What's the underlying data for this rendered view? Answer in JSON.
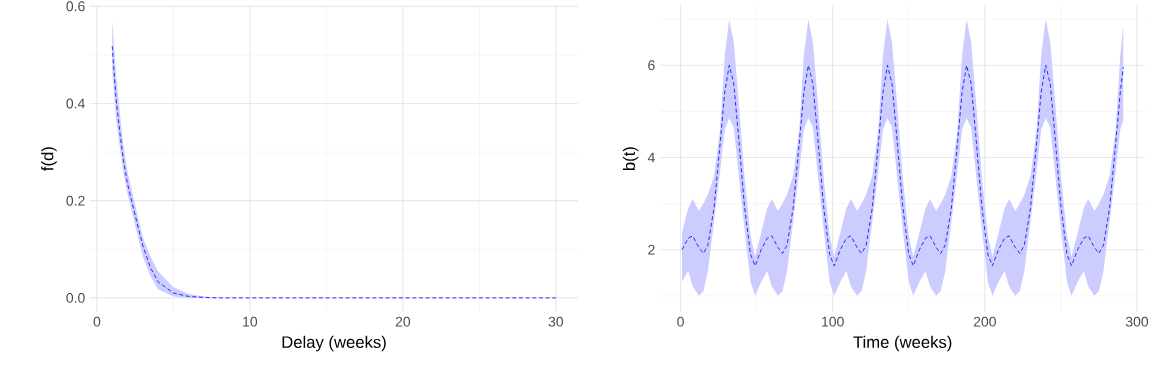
{
  "chart_data": [
    {
      "type": "line",
      "xlabel": "Delay (weeks)",
      "ylabel": "f(d)",
      "xlim": [
        -0.45,
        31.45
      ],
      "ylim": [
        -0.029,
        0.602
      ],
      "xticks": [
        0,
        10,
        20,
        30
      ],
      "yticks": [
        {
          "value": 0,
          "label": "0.0"
        },
        {
          "value": 0.2,
          "label": "0.2"
        },
        {
          "value": 0.4,
          "label": "0.4"
        },
        {
          "value": 0.6,
          "label": "0.6"
        }
      ],
      "grid": true,
      "series": [
        {
          "color": "#0000ff",
          "line_style": "dashed",
          "x": [
            1,
            1.25,
            1.5,
            1.75,
            2,
            2.5,
            3,
            3.5,
            4,
            5,
            6,
            7,
            8,
            10,
            15,
            20,
            25,
            30
          ],
          "values": [
            0.518,
            0.41,
            0.34,
            0.28,
            0.235,
            0.17,
            0.108,
            0.062,
            0.033,
            0.01,
            0.003,
            0.001,
            0,
            0,
            0,
            0,
            0,
            0
          ],
          "upper": [
            0.573,
            0.46,
            0.38,
            0.31,
            0.26,
            0.19,
            0.125,
            0.085,
            0.055,
            0.022,
            0.008,
            0.003,
            0.001,
            0,
            0,
            0,
            0,
            0
          ],
          "lower": [
            0.47,
            0.37,
            0.31,
            0.255,
            0.215,
            0.15,
            0.085,
            0.045,
            0.018,
            0.003,
            0,
            0,
            0,
            0,
            0,
            0,
            0,
            0
          ]
        }
      ]
    },
    {
      "type": "line",
      "xlabel": "Time (weeks)",
      "ylabel": "b(t)",
      "xlim": [
        -13.5,
        305.5
      ],
      "ylim": [
        0.65,
        7.3
      ],
      "xticks": [
        0,
        100,
        200,
        300
      ],
      "yticks": [
        2,
        4,
        6
      ],
      "grid": true,
      "series": [
        {
          "color": "#0000ff",
          "line_style": "dashed",
          "x": [
            1,
            5,
            8,
            12,
            15,
            18,
            22,
            26,
            29,
            32,
            35,
            38,
            42,
            46,
            49,
            53,
            57,
            60,
            64,
            67,
            70,
            74,
            78,
            81,
            84,
            87,
            90,
            94,
            98,
            101,
            105,
            109,
            112,
            116,
            119,
            122,
            126,
            130,
            133,
            136,
            139,
            142,
            146,
            150,
            153,
            157,
            161,
            164,
            168,
            171,
            174,
            178,
            182,
            185,
            188,
            191,
            194,
            198,
            202,
            205,
            209,
            213,
            216,
            220,
            223,
            226,
            230,
            234,
            237,
            240,
            243,
            246,
            250,
            254,
            257,
            261,
            265,
            268,
            272,
            275,
            278,
            282,
            286,
            289,
            291
          ],
          "values": [
            2.0,
            2.25,
            2.3,
            2.05,
            1.92,
            2.1,
            2.9,
            4.3,
            5.4,
            6.0,
            5.6,
            4.5,
            2.95,
            1.9,
            1.65,
            2.0,
            2.25,
            2.3,
            2.05,
            1.92,
            2.1,
            2.9,
            4.3,
            5.4,
            6.0,
            5.6,
            4.5,
            2.95,
            1.9,
            1.65,
            2.0,
            2.25,
            2.3,
            2.05,
            1.92,
            2.1,
            2.9,
            4.3,
            5.4,
            6.0,
            5.6,
            4.5,
            2.95,
            1.9,
            1.65,
            2.0,
            2.25,
            2.3,
            2.05,
            1.92,
            2.1,
            2.9,
            4.3,
            5.4,
            6.0,
            5.6,
            4.5,
            2.95,
            1.9,
            1.65,
            2.0,
            2.25,
            2.3,
            2.05,
            1.92,
            2.1,
            2.9,
            4.3,
            5.4,
            6.0,
            5.6,
            4.5,
            2.95,
            1.9,
            1.65,
            2.0,
            2.25,
            2.3,
            2.05,
            1.92,
            2.1,
            2.9,
            4.3,
            5.4,
            5.96
          ],
          "upper": [
            2.37,
            2.9,
            3.1,
            2.84,
            3.0,
            3.2,
            3.6,
            4.6,
            6.2,
            7.0,
            6.5,
            5.3,
            3.6,
            2.3,
            1.85,
            2.37,
            2.9,
            3.1,
            2.84,
            3.0,
            3.2,
            3.6,
            4.6,
            6.2,
            7.0,
            6.5,
            5.3,
            3.6,
            2.3,
            1.85,
            2.37,
            2.9,
            3.1,
            2.84,
            3.0,
            3.2,
            3.6,
            4.6,
            6.2,
            7.0,
            6.5,
            5.3,
            3.6,
            2.3,
            1.85,
            2.37,
            2.9,
            3.1,
            2.84,
            3.0,
            3.2,
            3.6,
            4.6,
            6.2,
            7.0,
            6.5,
            5.3,
            3.6,
            2.3,
            1.85,
            2.37,
            2.9,
            3.1,
            2.84,
            3.0,
            3.2,
            3.6,
            4.6,
            6.2,
            7.0,
            6.5,
            5.3,
            3.6,
            2.3,
            1.85,
            2.37,
            2.9,
            3.1,
            2.84,
            3.0,
            3.2,
            3.6,
            4.6,
            6.2,
            6.88
          ],
          "lower": [
            1.3,
            1.54,
            1.2,
            1.0,
            1.1,
            1.54,
            2.6,
            3.7,
            4.6,
            4.85,
            4.65,
            3.7,
            2.46,
            1.3,
            1.0,
            1.3,
            1.54,
            1.2,
            1.0,
            1.1,
            1.54,
            2.6,
            3.7,
            4.6,
            4.85,
            4.65,
            3.7,
            2.46,
            1.3,
            1.0,
            1.3,
            1.54,
            1.2,
            1.0,
            1.1,
            1.54,
            2.6,
            3.7,
            4.6,
            4.85,
            4.65,
            3.7,
            2.46,
            1.3,
            1.0,
            1.3,
            1.54,
            1.2,
            1.0,
            1.1,
            1.54,
            2.6,
            3.7,
            4.6,
            4.85,
            4.65,
            3.7,
            2.46,
            1.3,
            1.0,
            1.3,
            1.54,
            1.2,
            1.0,
            1.1,
            1.54,
            2.6,
            3.7,
            4.6,
            4.85,
            4.65,
            3.7,
            2.46,
            1.3,
            1.0,
            1.3,
            1.54,
            1.2,
            1.0,
            1.1,
            1.54,
            2.6,
            3.7,
            4.6,
            4.8
          ]
        }
      ]
    }
  ]
}
